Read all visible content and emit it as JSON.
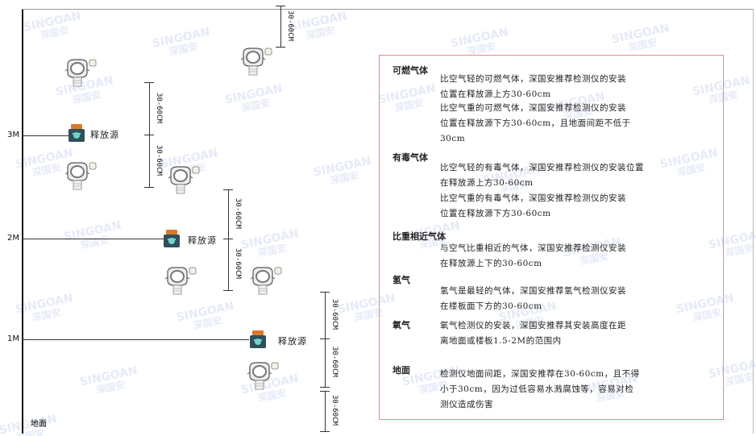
{
  "watermark": {
    "brand": "SINGOAN",
    "cn": "深国安"
  },
  "levels": [
    "3M",
    "2M",
    "1M"
  ],
  "ground_label": "地面",
  "source_label": "释放源",
  "dimension_label": "30-60CM",
  "legend": {
    "sections": [
      {
        "title": "可燃气体",
        "paras": [
          [
            "比空气轻的可燃气体，深国安推荐检测仪的安装",
            "位置在释放源上方30-60cm"
          ],
          [
            "比空气重的可燃气体，深国安推荐检测仪的安装",
            "位置在释放源下方30-60cm，且地面间距不低于",
            "30cm"
          ]
        ]
      },
      {
        "title": "有毒气体",
        "paras": [
          [
            "比空气轻的有毒气体，深国安推荐检测仪的安装位置",
            "在释放源上方30-60cm"
          ],
          [
            "比空气重的有毒气体，深国安推荐检测仪的安装",
            "位置在释放源下方30-60cm"
          ]
        ]
      },
      {
        "title": "比重相近气体",
        "paras": [
          [
            "与空气比重相近的气体，深国安推荐检测仪安装",
            "在释放源上下的30-60cm"
          ]
        ]
      },
      {
        "title": "氢气",
        "paras": [
          [
            "氢气是最轻的气体，深国安推荐氢气检测仪安装",
            "在楼板面下方的30-60cm"
          ]
        ]
      },
      {
        "title": "氧气",
        "paras": [
          [
            "氧气检测仪的安装，深国安推荐其安装高度在距",
            "离地面或楼板1.5-2M的范围内"
          ]
        ]
      },
      {
        "title": "地面",
        "paras": [
          [
            "检测仪地面间距，深国安推荐在30-60cm，且不得",
            "小于30cm，因为过低容易水溅腐蚀等，容易对检",
            "测仪造成伤害"
          ]
        ]
      }
    ]
  },
  "colors": {
    "legend_border": "#e88888",
    "source_body": "#2f4f5a",
    "source_lid": "#d97a2b"
  }
}
